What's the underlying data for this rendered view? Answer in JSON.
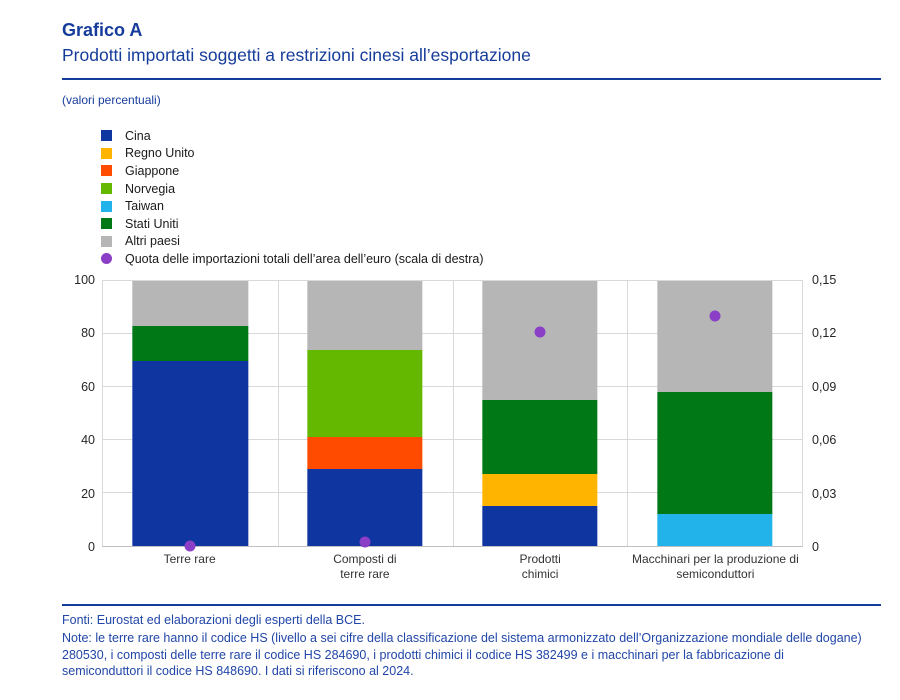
{
  "header": {
    "label": "Grafico A",
    "title": "Prodotti importati soggetti a restrizioni cinesi all’esportazione",
    "unit_note": "(valori percentuali)"
  },
  "colors": {
    "brand_blue": "#163C9B",
    "cina": "#0E35A0",
    "regno_unito": "#FFB400",
    "giappone": "#FF4B00",
    "norvegia": "#65B800",
    "taiwan": "#21B3EA",
    "stati_uniti": "#007816",
    "altri_paesi": "#B6B6B6",
    "quota_dot": "#8A3FC6",
    "gridline": "#D9D9D9"
  },
  "legend": {
    "items": [
      {
        "label": "Cina",
        "color": "#0E35A0",
        "shape": "square"
      },
      {
        "label": "Regno Unito",
        "color": "#FFB400",
        "shape": "square"
      },
      {
        "label": "Giappone",
        "color": "#FF4B00",
        "shape": "square"
      },
      {
        "label": "Norvegia",
        "color": "#65B800",
        "shape": "square"
      },
      {
        "label": "Taiwan",
        "color": "#21B3EA",
        "shape": "square"
      },
      {
        "label": "Stati Uniti",
        "color": "#007816",
        "shape": "square"
      },
      {
        "label": "Altri paesi",
        "color": "#B6B6B6",
        "shape": "square"
      },
      {
        "label": "Quota delle importazioni totali dell’area dell’euro (scala di destra)",
        "color": "#8A3FC6",
        "shape": "circle"
      }
    ]
  },
  "chart_data": {
    "type": "bar",
    "stacked": true,
    "title": "Prodotti importati soggetti a restrizioni cinesi all’esportazione",
    "subtitle": "(valori percentuali)",
    "categories": [
      "Terre rare",
      "Composti di terre rare",
      "Prodotti chimici",
      "Macchinari per la produzione di semiconduttori"
    ],
    "category_label_lines": [
      [
        "Terre rare"
      ],
      [
        "Composti di",
        "terre rare"
      ],
      [
        "Prodotti",
        "chimici"
      ],
      [
        "Macchinari per la produzione di",
        "semiconduttori"
      ]
    ],
    "series": [
      {
        "name": "Cina",
        "color": "#0E35A0",
        "values": [
          70,
          29,
          15,
          0
        ]
      },
      {
        "name": "Regno Unito",
        "color": "#FFB400",
        "values": [
          0,
          0,
          12,
          0
        ]
      },
      {
        "name": "Giappone",
        "color": "#FF4B00",
        "values": [
          0,
          12,
          0,
          0
        ]
      },
      {
        "name": "Norvegia",
        "color": "#65B800",
        "values": [
          0,
          33,
          0,
          0
        ]
      },
      {
        "name": "Taiwan",
        "color": "#21B3EA",
        "values": [
          0,
          0,
          0,
          12
        ]
      },
      {
        "name": "Stati Uniti",
        "color": "#007816",
        "values": [
          13,
          0,
          28,
          46
        ]
      },
      {
        "name": "Altri paesi",
        "color": "#B6B6B6",
        "values": [
          17,
          26,
          45,
          42
        ]
      }
    ],
    "dot_series": {
      "name": "Quota delle importazioni totali dell’area dell’euro (scala di destra)",
      "color": "#8A3FC6",
      "axis": "right",
      "values": [
        0.0002,
        0.002,
        0.121,
        0.13
      ]
    },
    "left_axis": {
      "min": 0,
      "max": 100,
      "ticks": [
        0,
        20,
        40,
        60,
        80,
        100
      ],
      "tick_labels": [
        "0",
        "20",
        "40",
        "60",
        "80",
        "100"
      ]
    },
    "right_axis": {
      "min": 0,
      "max": 0.15,
      "ticks": [
        0,
        0.03,
        0.06,
        0.09,
        0.12,
        0.15
      ],
      "tick_labels": [
        "0",
        "0,03",
        "0,06",
        "0,09",
        "0,12",
        "0,15"
      ]
    },
    "grid": true,
    "legend_position": "top-left"
  },
  "footer": {
    "fonti": "Fonti: Eurostat ed elaborazioni degli esperti della BCE.",
    "note": "Note: le terre rare hanno il codice HS (livello a sei cifre della classificazione del sistema armonizzato dell’Organizzazione mondiale delle dogane) 280530, i composti delle terre rare il codice HS 284690, i prodotti chimici il codice HS 382499 e i macchinari per la fabbricazione di semiconduttori il codice HS 848690. I dati si riferiscono al 2024."
  }
}
